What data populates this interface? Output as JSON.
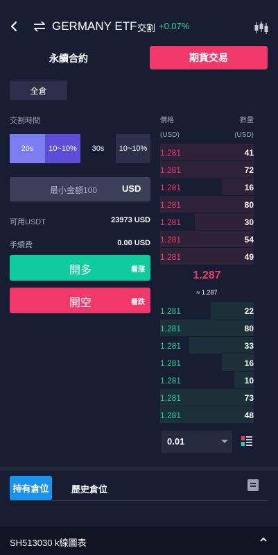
{
  "header": {
    "title": "GERMANY ETF",
    "delivery_tag": "交割",
    "change": "+0.07%"
  },
  "tabs": {
    "perpetual": "永續合約",
    "futures": "期貨交易"
  },
  "position_mode": "全倉",
  "delivery_time": {
    "label": "交割時間",
    "options": [
      {
        "label": "20s"
      },
      {
        "label": "10~10%"
      },
      {
        "label": "30s"
      },
      {
        "label": "10~10%"
      }
    ]
  },
  "amount": {
    "placeholder": "最小金額100",
    "unit": "USD"
  },
  "available": {
    "label": "可用USDT",
    "value": "23973 USD"
  },
  "fee": {
    "label": "手續費",
    "value": "0.00 USD"
  },
  "buttons": {
    "long_main": "開多",
    "long_side": "看漲",
    "short_main": "開空",
    "short_side": "看跌"
  },
  "orderbook": {
    "price_label": "價格",
    "qty_label": "數量",
    "price_unit": "(USD)",
    "qty_unit": "(USD)",
    "asks": [
      {
        "price": "1.281",
        "qty": "41",
        "depth": 1.0
      },
      {
        "price": "1.281",
        "qty": "72",
        "depth": 1.0
      },
      {
        "price": "1.281",
        "qty": "16",
        "depth": 0.34
      },
      {
        "price": "1.281",
        "qty": "80",
        "depth": 1.0
      },
      {
        "price": "1.281",
        "qty": "30",
        "depth": 0.63
      },
      {
        "price": "1.281",
        "qty": "54",
        "depth": 1.0
      },
      {
        "price": "1.281",
        "qty": "49",
        "depth": 1.0
      }
    ],
    "last_price": "1.287",
    "approx": "≈ 1.287",
    "bids": [
      {
        "price": "1.281",
        "qty": "22",
        "depth": 0.46
      },
      {
        "price": "1.281",
        "qty": "80",
        "depth": 1.0
      },
      {
        "price": "1.281",
        "qty": "33",
        "depth": 0.69
      },
      {
        "price": "1.281",
        "qty": "16",
        "depth": 0.34
      },
      {
        "price": "1.281",
        "qty": "10",
        "depth": 0.21
      },
      {
        "price": "1.281",
        "qty": "73",
        "depth": 1.0
      },
      {
        "price": "1.281",
        "qty": "48",
        "depth": 1.0
      }
    ],
    "depth_select": "0.01"
  },
  "positions_tabs": {
    "holding": "持有倉位",
    "history": "歷史倉位"
  },
  "bottom_bar": {
    "text": "SH513030  k線圖表"
  },
  "colors": {
    "up": "#1fd19c",
    "down": "#f0396a",
    "accent_blue": "#1993f0"
  }
}
